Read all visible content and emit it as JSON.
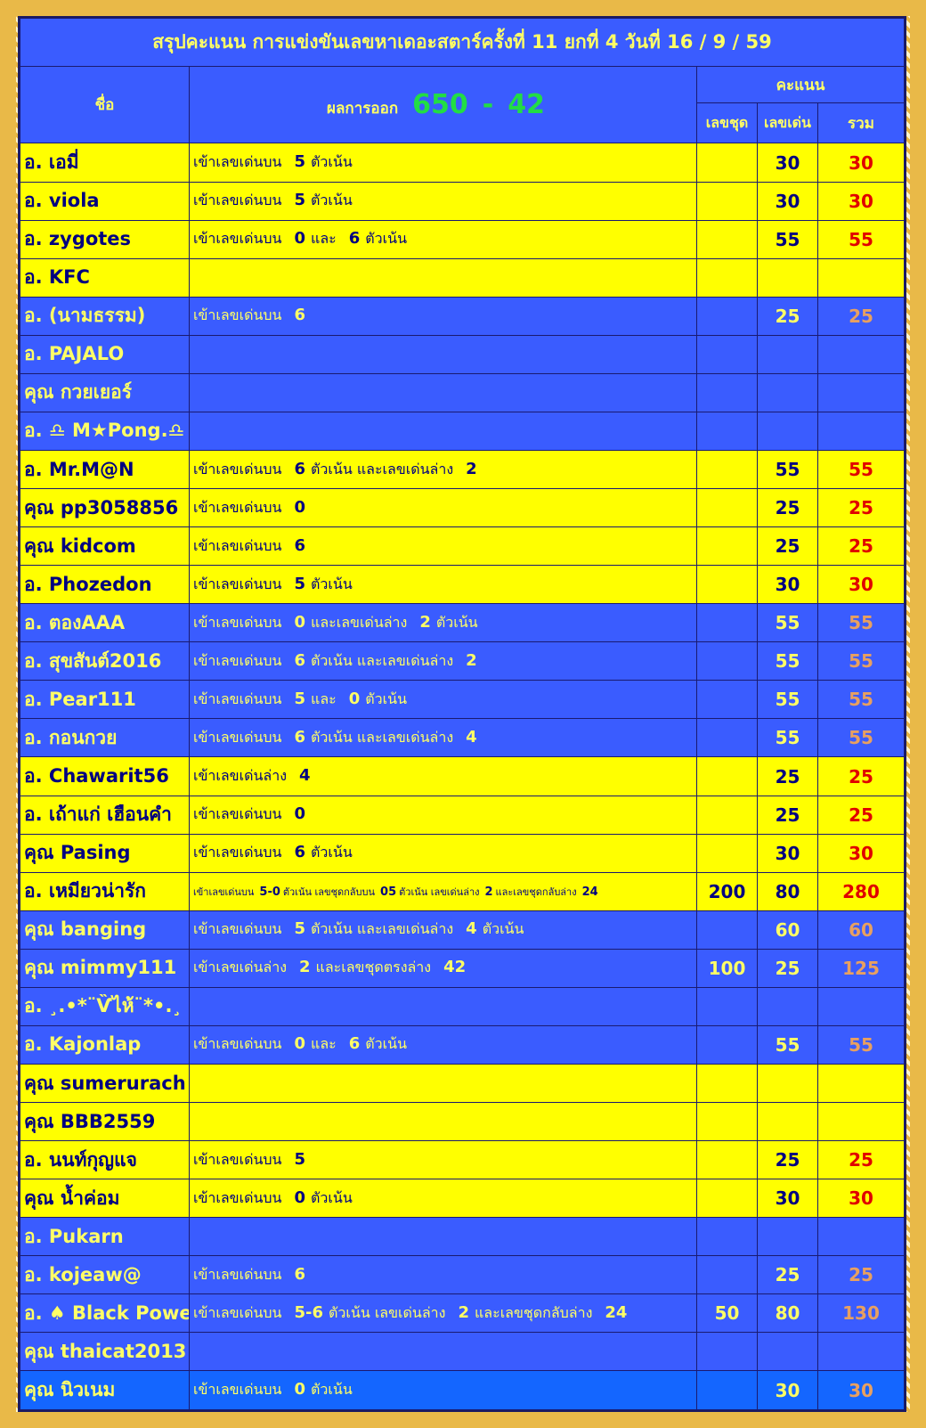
{
  "title": "สรุปคะแนน การแข่งขันเลขหาเดอะสตาร์ครั้งที่ 11 ยกที่ 4  วันที่ 16 / 9 / 59",
  "header": {
    "name": "ชื่อ",
    "result_label": "ผลการออก",
    "result_top": "650",
    "result_sep": "-",
    "result_bottom": "42",
    "score": "คะแนน",
    "set": "เลขชุด",
    "lead": "เลขเด่น",
    "total": "รวม"
  },
  "colors": {
    "yellow_row": "#ffff00",
    "blue_row": "#3a5cff",
    "total_on_yellow": "#e00000",
    "total_on_blue": "#e8a060",
    "result_green": "#22dd44"
  },
  "rows": [
    {
      "name": "อ. เอมี่",
      "c": "Y",
      "d": [
        [
          "เข้าเลขเด่นบน"
        ],
        [
          "5",
          1
        ],
        [
          "ตัวเน้น"
        ]
      ],
      "set": "",
      "lead": "30",
      "total": "30"
    },
    {
      "name": "อ. viola",
      "c": "Y",
      "d": [
        [
          "เข้าเลขเด่นบน"
        ],
        [
          "5",
          1
        ],
        [
          "ตัวเน้น"
        ]
      ],
      "set": "",
      "lead": "30",
      "total": "30"
    },
    {
      "name": "อ. zygotes",
      "c": "Y",
      "d": [
        [
          "เข้าเลขเด่นบน"
        ],
        [
          "0",
          1
        ],
        [
          "และ"
        ],
        [
          "6",
          1
        ],
        [
          "ตัวเน้น"
        ]
      ],
      "set": "",
      "lead": "55",
      "total": "55"
    },
    {
      "name": "อ. KFC",
      "c": "Y",
      "d": [],
      "set": "",
      "lead": "",
      "total": ""
    },
    {
      "name": "อ. (นามธรรม)",
      "c": "B",
      "d": [
        [
          "เข้าเลขเด่นบน"
        ],
        [
          "6",
          1
        ]
      ],
      "set": "",
      "lead": "25",
      "total": "25"
    },
    {
      "name": "อ. PAJALO",
      "c": "B",
      "d": [],
      "set": "",
      "lead": "",
      "total": ""
    },
    {
      "name": "คุณ กวยเยอร์",
      "c": "B",
      "d": [],
      "set": "",
      "lead": "",
      "total": ""
    },
    {
      "name": "อ. ♎ M★Pong.♎",
      "c": "B",
      "d": [],
      "set": "",
      "lead": "",
      "total": ""
    },
    {
      "name": "อ. Mr.M@N",
      "c": "Y",
      "d": [
        [
          "เข้าเลขเด่นบน"
        ],
        [
          "6",
          1
        ],
        [
          "ตัวเน้น   และเลขเด่นล่าง"
        ],
        [
          "2",
          1
        ]
      ],
      "set": "",
      "lead": "55",
      "total": "55"
    },
    {
      "name": "คุณ pp3058856",
      "c": "Y",
      "d": [
        [
          "เข้าเลขเด่นบน"
        ],
        [
          "0",
          1
        ]
      ],
      "set": "",
      "lead": "25",
      "total": "25"
    },
    {
      "name": "คุณ kidcom",
      "c": "Y",
      "d": [
        [
          "เข้าเลขเด่นบน"
        ],
        [
          "6",
          1
        ]
      ],
      "set": "",
      "lead": "25",
      "total": "25"
    },
    {
      "name": "อ. Phozedon",
      "c": "Y",
      "d": [
        [
          "เข้าเลขเด่นบน"
        ],
        [
          "5",
          1
        ],
        [
          "ตัวเน้น"
        ]
      ],
      "set": "",
      "lead": "30",
      "total": "30"
    },
    {
      "name": "อ. ตองAAA",
      "c": "B",
      "d": [
        [
          "เข้าเลขเด่นบน"
        ],
        [
          "0",
          1
        ],
        [
          "และเลขเด่นล่าง"
        ],
        [
          "2",
          1
        ],
        [
          "ตัวเน้น"
        ]
      ],
      "set": "",
      "lead": "55",
      "total": "55"
    },
    {
      "name": "อ. สุขสันต์2016",
      "c": "B",
      "d": [
        [
          "เข้าเลขเด่นบน"
        ],
        [
          "6",
          1
        ],
        [
          "ตัวเน้น   และเลขเด่นล่าง"
        ],
        [
          "2",
          1
        ]
      ],
      "set": "",
      "lead": "55",
      "total": "55"
    },
    {
      "name": "อ. Pear111",
      "c": "B",
      "d": [
        [
          "เข้าเลขเด่นบน"
        ],
        [
          "5",
          1
        ],
        [
          "และ"
        ],
        [
          "0",
          1
        ],
        [
          "ตัวเน้น"
        ]
      ],
      "set": "",
      "lead": "55",
      "total": "55"
    },
    {
      "name": "อ. กอนกวย",
      "c": "B",
      "d": [
        [
          "เข้าเลขเด่นบน"
        ],
        [
          "6",
          1
        ],
        [
          "ตัวเน้น   และเลขเด่นล่าง"
        ],
        [
          "4",
          1
        ]
      ],
      "set": "",
      "lead": "55",
      "total": "55"
    },
    {
      "name": "อ. Chawarit56",
      "c": "Y",
      "d": [
        [
          "เข้าเลขเด่นล่าง"
        ],
        [
          "4",
          1
        ]
      ],
      "set": "",
      "lead": "25",
      "total": "25"
    },
    {
      "name": "อ. เถ้าแก่ เฮือนคำ",
      "c": "Y",
      "d": [
        [
          "เข้าเลขเด่นบน"
        ],
        [
          "0",
          1
        ]
      ],
      "set": "",
      "lead": "25",
      "total": "25"
    },
    {
      "name": "คุณ Pasing",
      "c": "Y",
      "d": [
        [
          "เข้าเลขเด่นบน"
        ],
        [
          "6",
          1
        ],
        [
          "ตัวเน้น"
        ]
      ],
      "set": "",
      "lead": "30",
      "total": "30"
    },
    {
      "name": "อ. เหมียวน่ารัก",
      "c": "Y",
      "small": true,
      "d": [
        [
          "เข้าเลขเด่นบน"
        ],
        [
          "5-0",
          1
        ],
        [
          "ตัวเน้น  เลขชุดกลับบน"
        ],
        [
          "05",
          1
        ],
        [
          "ตัวเน้น  เลขเด่นล่าง"
        ],
        [
          "2",
          1
        ],
        [
          "และเลขชุดกลับล่าง"
        ],
        [
          "24",
          1
        ]
      ],
      "set": "200",
      "lead": "80",
      "total": "280"
    },
    {
      "name": "คุณ banging",
      "c": "B",
      "d": [
        [
          "เข้าเลขเด่นบน"
        ],
        [
          "5",
          1
        ],
        [
          "ตัวเน้น   และเลขเด่นล่าง"
        ],
        [
          "4",
          1
        ],
        [
          "ตัวเน้น"
        ]
      ],
      "set": "",
      "lead": "60",
      "total": "60"
    },
    {
      "name": "คุณ mimmy111",
      "c": "B",
      "d": [
        [
          "เข้าเลขเด่นล่าง"
        ],
        [
          "2",
          1
        ],
        [
          "และเลขชุดตรงล่าง"
        ],
        [
          "42",
          1
        ]
      ],
      "set": "100",
      "lead": "25",
      "total": "125"
    },
    {
      "name": "อ. ¸.•*¨Ѷไห้¨*•.¸",
      "c": "B",
      "d": [],
      "set": "",
      "lead": "",
      "total": ""
    },
    {
      "name": "อ. Kajonlap",
      "c": "B",
      "d": [
        [
          "เข้าเลขเด่นบน"
        ],
        [
          "0",
          1
        ],
        [
          "และ"
        ],
        [
          "6",
          1
        ],
        [
          "ตัวเน้น"
        ]
      ],
      "set": "",
      "lead": "55",
      "total": "55"
    },
    {
      "name": "คุณ sumerurach",
      "c": "Y",
      "d": [],
      "set": "",
      "lead": "",
      "total": ""
    },
    {
      "name": "คุณ BBB2559",
      "c": "Y",
      "d": [],
      "set": "",
      "lead": "",
      "total": ""
    },
    {
      "name": "อ. นนท์กุญแจ",
      "c": "Y",
      "d": [
        [
          "เข้าเลขเด่นบน"
        ],
        [
          "5",
          1
        ]
      ],
      "set": "",
      "lead": "25",
      "total": "25"
    },
    {
      "name": "คุณ น้ำค่อม",
      "c": "Y",
      "d": [
        [
          "เข้าเลขเด่นบน"
        ],
        [
          "0",
          1
        ],
        [
          "ตัวเน้น"
        ]
      ],
      "set": "",
      "lead": "30",
      "total": "30"
    },
    {
      "name": "อ. Pukarn",
      "c": "B",
      "d": [],
      "set": "",
      "lead": "",
      "total": ""
    },
    {
      "name": "อ. kojeaw@",
      "c": "B",
      "d": [
        [
          "เข้าเลขเด่นบน"
        ],
        [
          "6",
          1
        ]
      ],
      "set": "",
      "lead": "25",
      "total": "25"
    },
    {
      "name": "อ. ♠ Black Power ♠",
      "c": "B",
      "d": [
        [
          "เข้าเลขเด่นบน"
        ],
        [
          "5-6",
          1
        ],
        [
          "ตัวเน้น   เลขเด่นล่าง"
        ],
        [
          "2",
          1
        ],
        [
          "และเลขชุดกลับล่าง"
        ],
        [
          "24",
          1
        ]
      ],
      "set": "50",
      "lead": "80",
      "total": "130"
    },
    {
      "name": "คุณ thaicat2013",
      "c": "B",
      "d": [],
      "set": "",
      "lead": "",
      "total": ""
    },
    {
      "name": "คุณ นิวเนม",
      "c": "B",
      "last": true,
      "d": [
        [
          "เข้าเลขเด่นบน"
        ],
        [
          "0",
          1
        ],
        [
          "ตัวเน้น"
        ]
      ],
      "set": "",
      "lead": "30",
      "total": "30"
    }
  ]
}
